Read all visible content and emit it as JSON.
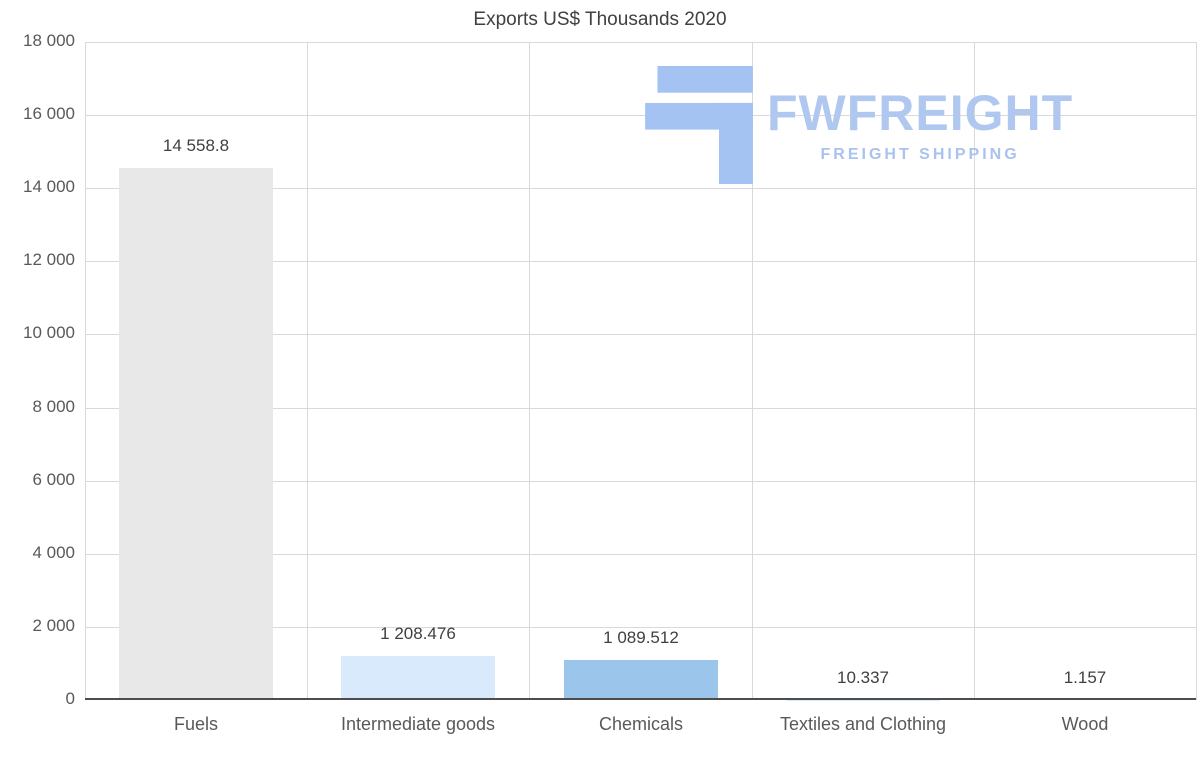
{
  "title": "Exports US$ Thousands 2020",
  "logo": {
    "name": "FWFREIGHT",
    "tagline": "FREIGHT SHIPPING",
    "text_color": "#b0c7f0",
    "icon_color": "#a4c3f3"
  },
  "chart_data": {
    "type": "bar",
    "title": "Exports US$ Thousands 2020",
    "categories": [
      "Fuels",
      "Intermediate goods",
      "Chemicals",
      "Textiles and Clothing",
      "Wood"
    ],
    "values": [
      14558.8,
      1208.476,
      1089.512,
      10.337,
      1.157
    ],
    "value_labels": [
      "14 558.8",
      "1 208.476",
      "1 089.512",
      "10.337",
      "1.157"
    ],
    "bar_colors": [
      "#e8e8e8",
      "#d9eafc",
      "#9cc5ec",
      "#d9eafc",
      "#d9eafc"
    ],
    "xlabel": "",
    "ylabel": "",
    "ylim": [
      0,
      18000
    ],
    "ytick_interval": 2000,
    "ytick_labels": [
      "0",
      "2 000",
      "4 000",
      "6 000",
      "8 000",
      "10 000",
      "12 000",
      "14 000",
      "16 000",
      "18 000"
    ],
    "grid": true,
    "legend": "none",
    "grid_color": "#d9d9d9",
    "axis_color": "#4d4d4d",
    "label_color": "#404040",
    "tick_color": "#595959"
  }
}
